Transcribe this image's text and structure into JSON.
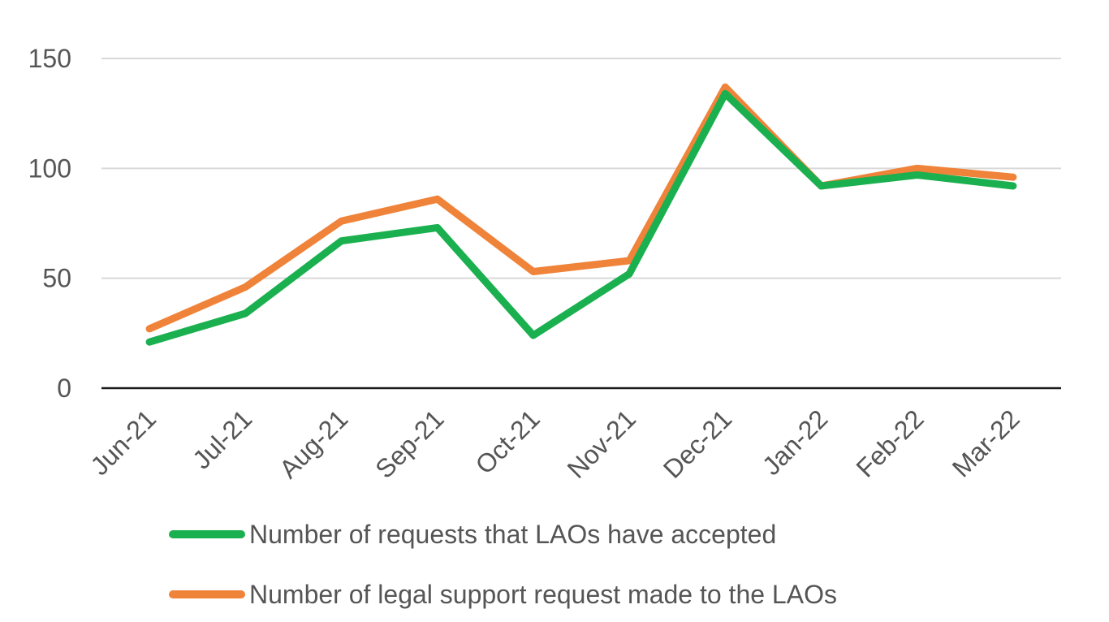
{
  "chart_data": {
    "type": "line",
    "title": "",
    "xlabel": "",
    "ylabel": "",
    "categories": [
      "Jun-21",
      "Jul-21",
      "Aug-21",
      "Sep-21",
      "Oct-21",
      "Nov-21",
      "Dec-21",
      "Jan-22",
      "Feb-22",
      "Mar-22"
    ],
    "ylim": [
      0,
      150
    ],
    "yticks": [
      "0",
      "50",
      "100",
      "150"
    ],
    "grid": true,
    "legend_position": "bottom",
    "series": [
      {
        "name": "Number of requests that LAOs have accepted",
        "color": "#1bb04f",
        "values": [
          21,
          34,
          67,
          73,
          24,
          52,
          134,
          92,
          97,
          92
        ]
      },
      {
        "name": "Number of legal support request made to the LAOs",
        "color": "#f0833a",
        "values": [
          27,
          46,
          76,
          86,
          53,
          58,
          137,
          92,
          100,
          96
        ]
      }
    ]
  }
}
